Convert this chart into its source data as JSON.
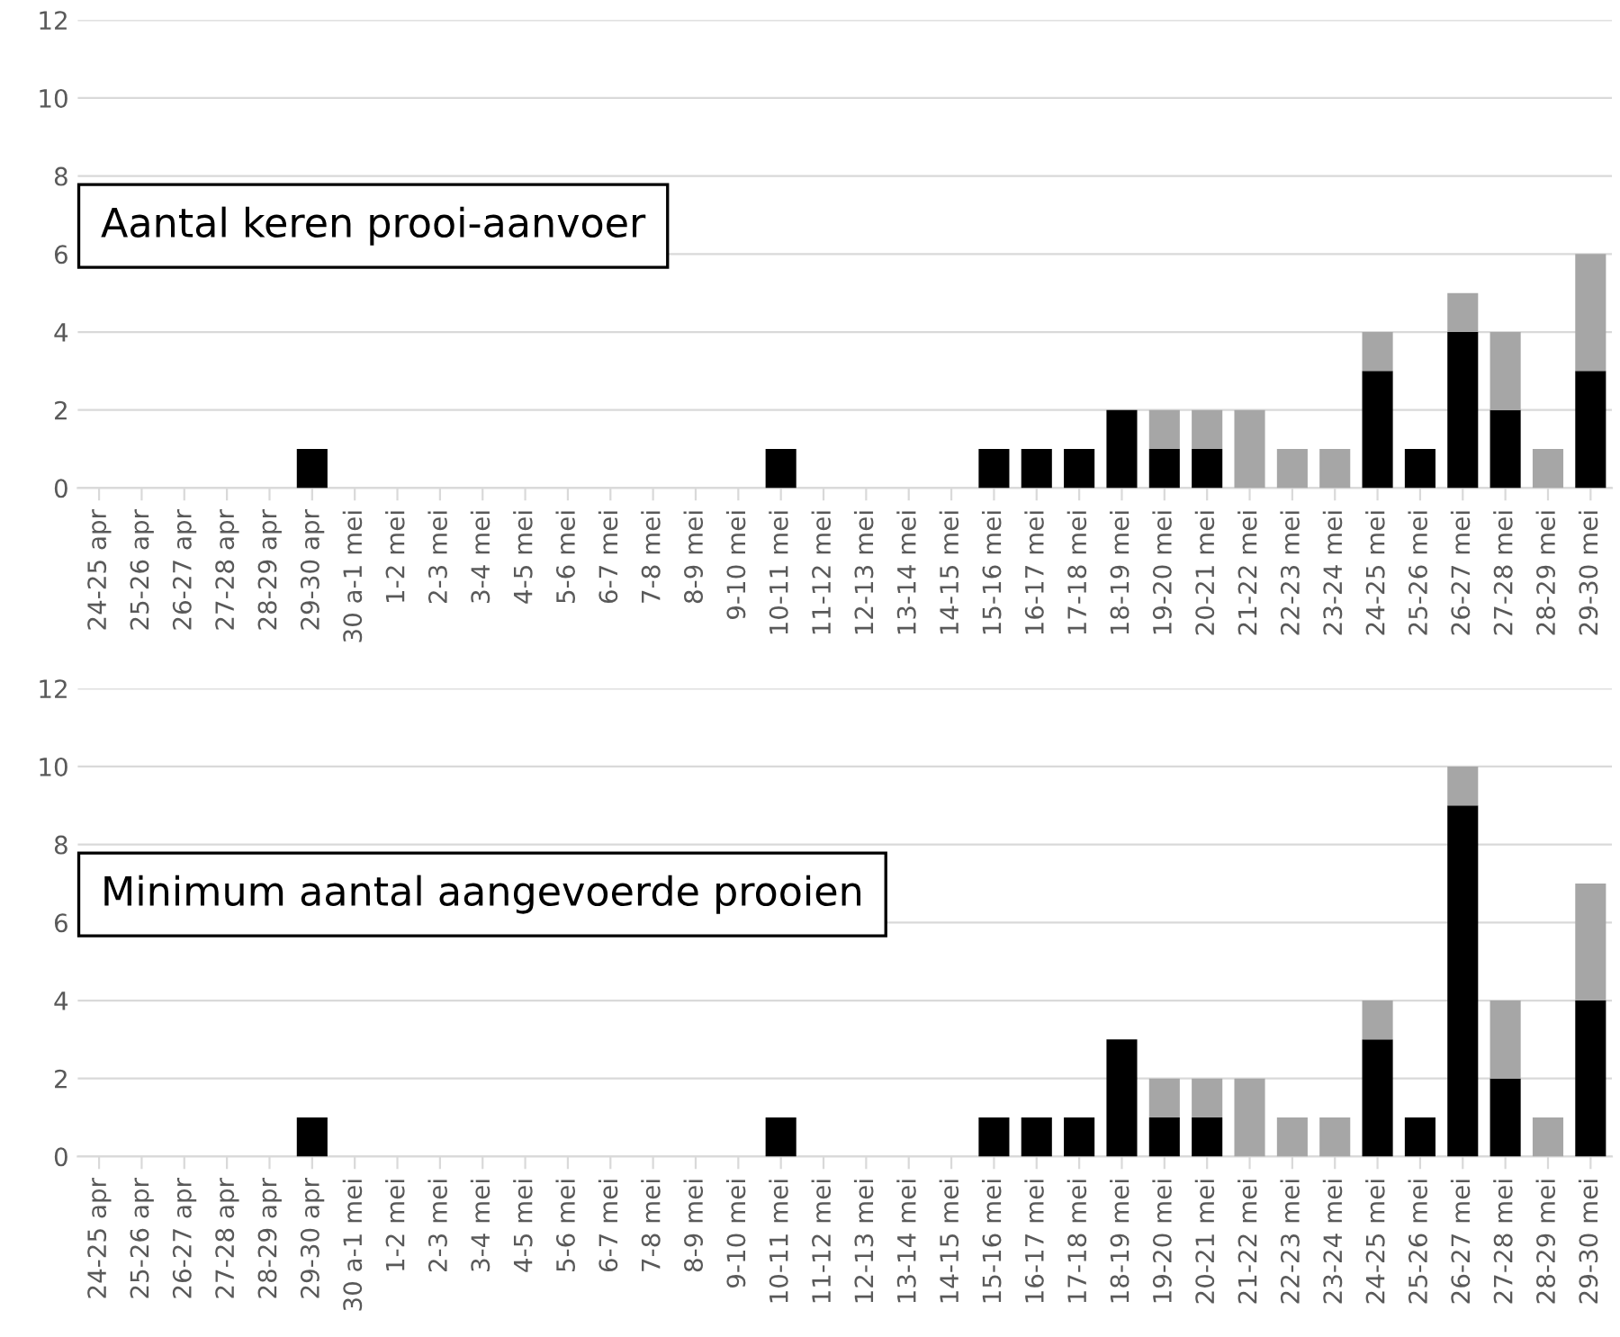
{
  "chart_data": [
    {
      "type": "bar",
      "title": "Aantal keren prooi-aanvoer",
      "stacked": true,
      "grid": "y",
      "ylim": [
        0,
        12
      ],
      "yticks": [
        0,
        2,
        4,
        6,
        8,
        10,
        12
      ],
      "categories": [
        "24-25 apr",
        "25-26 apr",
        "26-27 apr",
        "27-28 apr",
        "28-29 apr",
        "29-30 apr",
        "30 a-1 mei",
        "1-2 mei",
        "2-3 mei",
        "3-4 mei",
        "4-5 mei",
        "5-6 mei",
        "6-7 mei",
        "7-8 mei",
        "8-9 mei",
        "9-10 mei",
        "10-11 mei",
        "11-12 mei",
        "12-13 mei",
        "13-14 mei",
        "14-15 mei",
        "15-16 mei",
        "16-17 mei",
        "17-18 mei",
        "18-19 mei",
        "19-20 mei",
        "20-21 mei",
        "21-22 mei",
        "22-23 mei",
        "23-24 mei",
        "24-25 mei",
        "25-26 mei",
        "26-27 mei",
        "27-28 mei",
        "28-29 mei",
        "29-30 mei"
      ],
      "series": [
        {
          "color": "#000000",
          "values": [
            0,
            0,
            0,
            0,
            0,
            1,
            0,
            0,
            0,
            0,
            0,
            0,
            0,
            0,
            0,
            0,
            1,
            0,
            0,
            0,
            0,
            1,
            1,
            1,
            2,
            1,
            1,
            0,
            0,
            0,
            3,
            1,
            4,
            2,
            0,
            3
          ]
        },
        {
          "color": "#a6a6a6",
          "values": [
            0,
            0,
            0,
            0,
            0,
            0,
            0,
            0,
            0,
            0,
            0,
            0,
            0,
            0,
            0,
            0,
            0,
            0,
            0,
            0,
            0,
            0,
            0,
            0,
            0,
            1,
            1,
            2,
            1,
            1,
            1,
            0,
            1,
            2,
            1,
            3
          ]
        }
      ]
    },
    {
      "type": "bar",
      "title": "Minimum aantal aangevoerde prooien",
      "stacked": true,
      "grid": "y",
      "ylim": [
        0,
        12
      ],
      "yticks": [
        0,
        2,
        4,
        6,
        8,
        10,
        12
      ],
      "categories": [
        "24-25 apr",
        "25-26 apr",
        "26-27 apr",
        "27-28 apr",
        "28-29 apr",
        "29-30 apr",
        "30 a-1 mei",
        "1-2 mei",
        "2-3 mei",
        "3-4 mei",
        "4-5 mei",
        "5-6 mei",
        "6-7 mei",
        "7-8 mei",
        "8-9 mei",
        "9-10 mei",
        "10-11 mei",
        "11-12 mei",
        "12-13 mei",
        "13-14 mei",
        "14-15 mei",
        "15-16 mei",
        "16-17 mei",
        "17-18 mei",
        "18-19 mei",
        "19-20 mei",
        "20-21 mei",
        "21-22 mei",
        "22-23 mei",
        "23-24 mei",
        "24-25 mei",
        "25-26 mei",
        "26-27 mei",
        "27-28 mei",
        "28-29 mei",
        "29-30 mei"
      ],
      "series": [
        {
          "color": "#000000",
          "values": [
            0,
            0,
            0,
            0,
            0,
            1,
            0,
            0,
            0,
            0,
            0,
            0,
            0,
            0,
            0,
            0,
            1,
            0,
            0,
            0,
            0,
            1,
            1,
            1,
            3,
            1,
            1,
            0,
            0,
            0,
            3,
            1,
            9,
            2,
            0,
            4
          ]
        },
        {
          "color": "#a6a6a6",
          "values": [
            0,
            0,
            0,
            0,
            0,
            0,
            0,
            0,
            0,
            0,
            0,
            0,
            0,
            0,
            0,
            0,
            0,
            0,
            0,
            0,
            0,
            0,
            0,
            0,
            0,
            1,
            1,
            2,
            1,
            1,
            1,
            0,
            1,
            2,
            1,
            3
          ]
        }
      ]
    }
  ]
}
